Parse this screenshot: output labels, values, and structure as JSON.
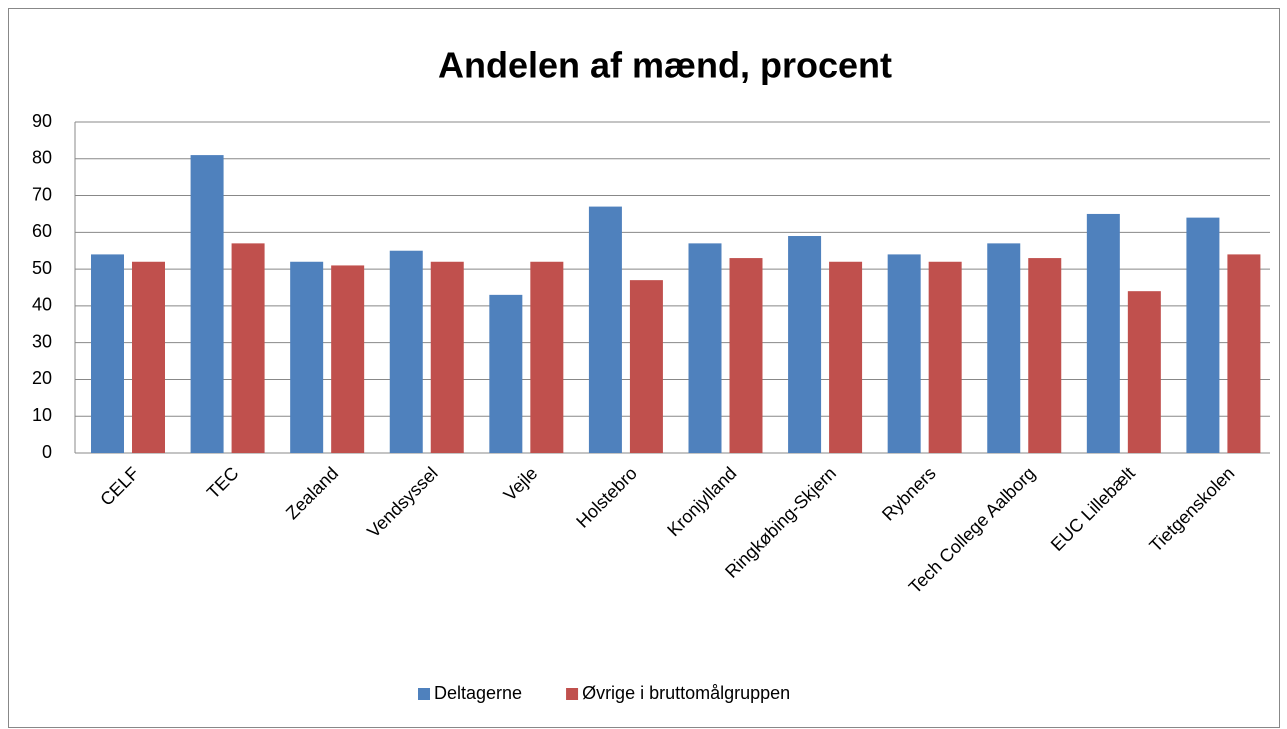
{
  "chart_data": {
    "type": "bar",
    "title": "Andelen af mænd, procent",
    "categories": [
      "CELF",
      "TEC",
      "Zealand",
      "Vendsyssel",
      "Vejle",
      "Holstebro",
      "Kronjylland",
      "Ringkøbing-Skjern",
      "Rybners",
      "Tech College Aalborg",
      "EUC Lillebælt",
      "Tietgenskolen"
    ],
    "series": [
      {
        "name": "Deltagerne",
        "color": "#4f81bd",
        "values": [
          54,
          81,
          52,
          55,
          43,
          67,
          57,
          59,
          54,
          57,
          65,
          64
        ]
      },
      {
        "name": "Øvrige i bruttomålgruppen",
        "color": "#c0504d",
        "values": [
          52,
          57,
          51,
          52,
          52,
          47,
          53,
          52,
          52,
          53,
          44,
          54
        ]
      }
    ],
    "ylim": [
      0,
      90
    ],
    "yticks": [
      0,
      10,
      20,
      30,
      40,
      50,
      60,
      70,
      80,
      90
    ],
    "grid": true,
    "legend": "bottom"
  }
}
